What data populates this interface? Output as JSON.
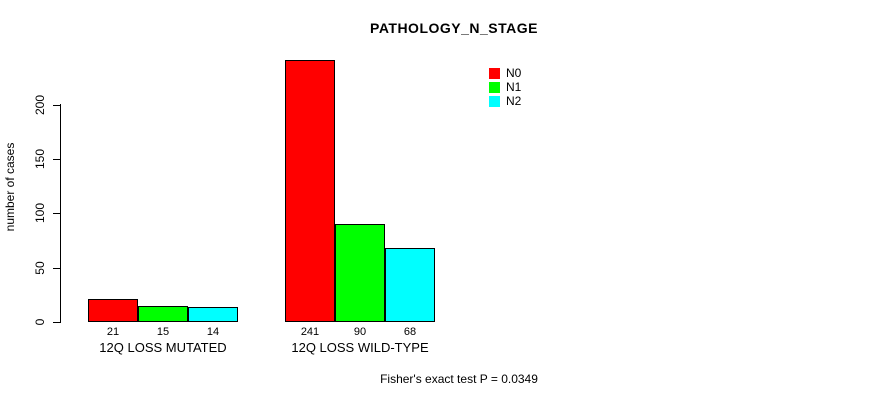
{
  "chart_data": {
    "type": "bar",
    "title": "PATHOLOGY_N_STAGE",
    "xlabel": "",
    "ylabel": "number of cases",
    "footer": "Fisher's exact test P = 0.0349",
    "categories": [
      "12Q LOSS MUTATED",
      "12Q LOSS WILD-TYPE"
    ],
    "series": [
      {
        "name": "N0",
        "color": "#FF0000",
        "values": [
          21,
          241
        ]
      },
      {
        "name": "N1",
        "color": "#00FF00",
        "values": [
          15,
          90
        ]
      },
      {
        "name": "N2",
        "color": "#00FFFF",
        "values": [
          14,
          68
        ]
      }
    ],
    "bar_value_labels": [
      [
        "21",
        "15",
        "14"
      ],
      [
        "241",
        "90",
        "68"
      ]
    ],
    "yticks": [
      0,
      50,
      100,
      150,
      200
    ],
    "ylim": [
      0,
      200
    ],
    "grid": false,
    "legend_position": "top-right",
    "background_color": "#FFFFFF",
    "bar_border_color": "#000000"
  }
}
